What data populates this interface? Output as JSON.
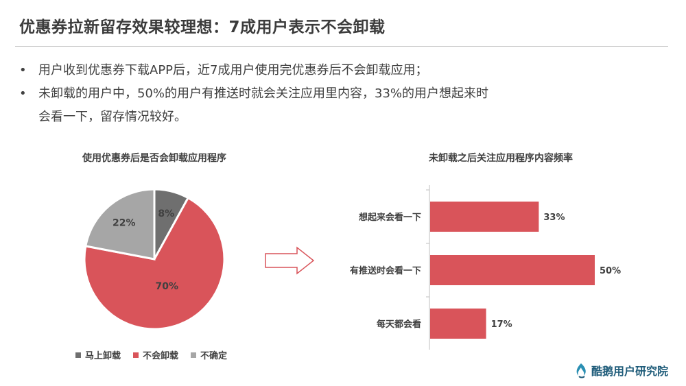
{
  "title": "优惠券拉新留存效果较理想：7成用户表示不会卸载",
  "bullets": [
    {
      "dot": "•",
      "text": "用户收到优惠券下载APP后，近7成用户使用完优惠券后不会卸载应用；"
    },
    {
      "dot": "•",
      "text": "未卸载的用户中，50%的用户有推送时就会关注应用里内容，33%的用户想起来时"
    },
    {
      "dot": "",
      "text": "会看一下，留存情况较好。"
    }
  ],
  "logo": {
    "text": "酷鹅用户研究院",
    "icon": "flame-logo-icon"
  },
  "chart_data": [
    {
      "type": "pie",
      "title": "使用优惠券后是否会卸载应用程序",
      "categories": [
        "马上卸载",
        "不会卸载",
        "不确定"
      ],
      "values": [
        8,
        70,
        22
      ],
      "labels": [
        "8%",
        "70%",
        "22%"
      ],
      "colors": [
        "#6f6f6f",
        "#d9545a",
        "#a6a6a6"
      ],
      "legend": "bottom"
    },
    {
      "type": "bar",
      "orientation": "horizontal",
      "title": "未卸载之后关注应用程序内容频率",
      "categories": [
        "想起来会看一下",
        "有推送时会看一下",
        "每天都会看"
      ],
      "values": [
        33,
        50,
        17
      ],
      "labels": [
        "33%",
        "50%",
        "17%"
      ],
      "color": "#d9545a",
      "xlim": [
        0,
        50
      ]
    }
  ]
}
